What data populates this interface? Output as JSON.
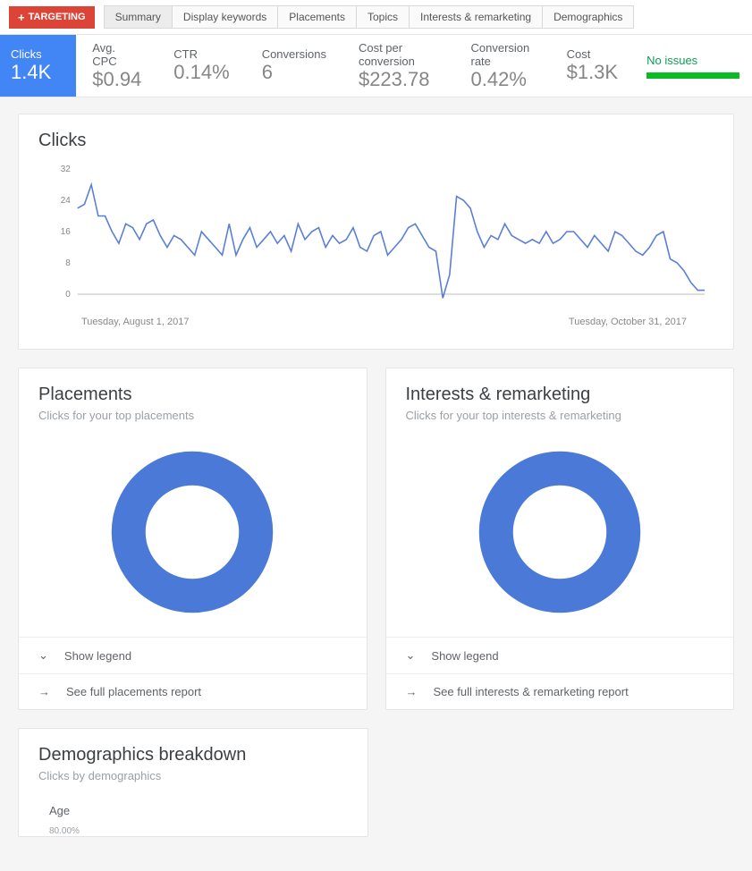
{
  "colors": {
    "accent_blue": "#4285f4",
    "targeting_red": "#db4437",
    "status_green_text": "#0f9d58",
    "status_green_bar": "#0cba25",
    "line_stroke": "#5a7ed8",
    "donut_fill": "#4a79d8",
    "card_border": "#e5e5e5",
    "text_muted": "#9aa0a6"
  },
  "topbar": {
    "targeting_label": "TARGETING",
    "tabs": [
      {
        "label": "Summary",
        "active": true
      },
      {
        "label": "Display keywords",
        "active": false
      },
      {
        "label": "Placements",
        "active": false
      },
      {
        "label": "Topics",
        "active": false
      },
      {
        "label": "Interests & remarketing",
        "active": false
      },
      {
        "label": "Demographics",
        "active": false
      }
    ]
  },
  "metrics": {
    "primary": {
      "label": "Clicks",
      "value": "1.4K"
    },
    "list": [
      {
        "label": "Avg. CPC",
        "value": "$0.94"
      },
      {
        "label": "CTR",
        "value": "0.14%"
      },
      {
        "label": "Conversions",
        "value": "6"
      },
      {
        "label": "Cost per conversion",
        "value": "$223.78"
      },
      {
        "label": "Conversion rate",
        "value": "0.42%"
      },
      {
        "label": "Cost",
        "value": "$1.3K"
      }
    ],
    "status_text": "No issues"
  },
  "clicks_chart": {
    "title": "Clicks",
    "type": "line",
    "ylim": [
      0,
      32
    ],
    "yticks": [
      0,
      8,
      16,
      24,
      32
    ],
    "xlabel_start": "Tuesday, August 1, 2017",
    "xlabel_end": "Tuesday, October 31, 2017",
    "line_color": "#5a7ed8",
    "line_width": 1.6,
    "axis_color": "#bdbdbd",
    "tick_font_size": 10,
    "background_color": "#ffffff",
    "values": [
      22,
      23,
      28,
      20,
      20,
      16,
      13,
      18,
      17,
      14,
      18,
      19,
      15,
      12,
      15,
      14,
      12,
      10,
      16,
      14,
      12,
      10,
      18,
      10,
      14,
      17,
      12,
      14,
      16,
      13,
      15,
      11,
      18,
      14,
      16,
      17,
      12,
      15,
      13,
      14,
      17,
      12,
      11,
      15,
      16,
      10,
      12,
      14,
      17,
      18,
      15,
      12,
      11,
      -1,
      5,
      25,
      24,
      22,
      16,
      12,
      15,
      14,
      18,
      15,
      14,
      13,
      14,
      13,
      16,
      13,
      14,
      16,
      16,
      14,
      12,
      15,
      13,
      11,
      16,
      15,
      13,
      11,
      10,
      12,
      15,
      16,
      9,
      8,
      6,
      3,
      1,
      1
    ]
  },
  "placements_card": {
    "title": "Placements",
    "subtitle": "Clicks for your top placements",
    "donut": {
      "color": "#4a79d8",
      "outer_radius": 95,
      "inner_radius": 55,
      "value_pct": 100,
      "background": "#ffffff"
    },
    "show_legend": "Show legend",
    "full_report": "See full placements report"
  },
  "interests_card": {
    "title": "Interests & remarketing",
    "subtitle": "Clicks for your top interests & remarketing",
    "donut": {
      "color": "#4a79d8",
      "outer_radius": 95,
      "inner_radius": 55,
      "value_pct": 100,
      "background": "#ffffff"
    },
    "show_legend": "Show legend",
    "full_report": "See full interests & remarketing report"
  },
  "demographics_card": {
    "title": "Demographics breakdown",
    "subtitle": "Clicks by demographics",
    "age_label": "Age",
    "y_axis_top": "80.00%"
  }
}
